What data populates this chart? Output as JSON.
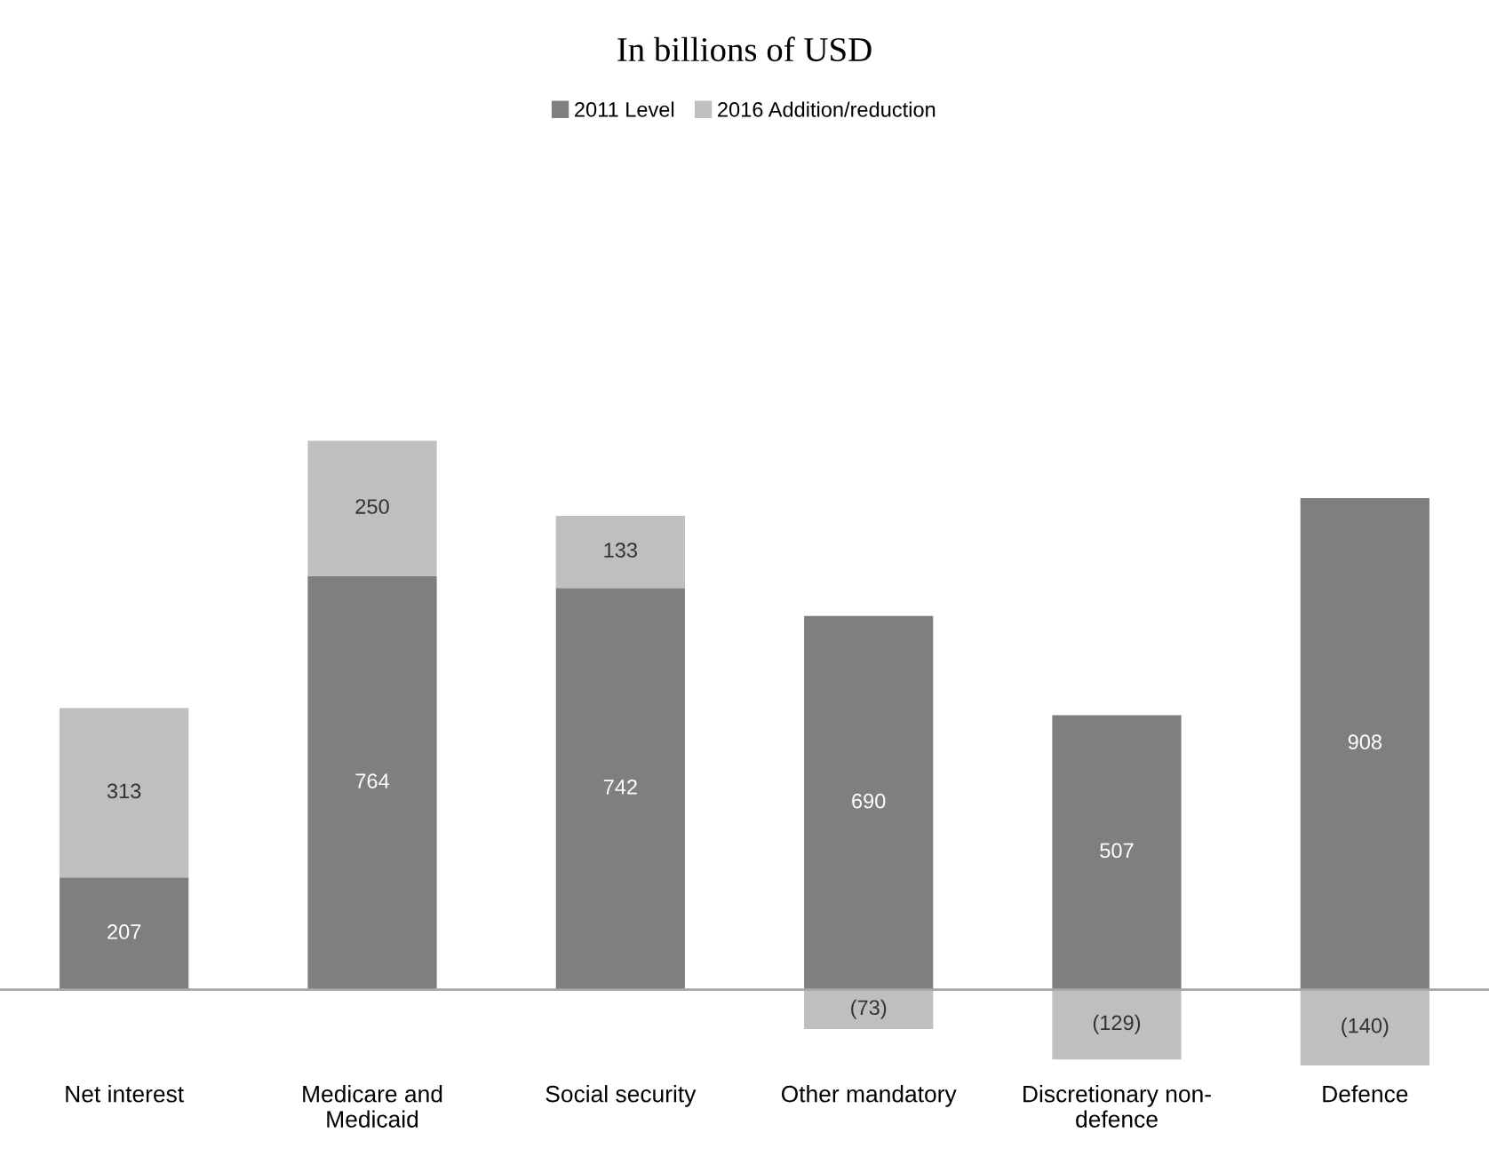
{
  "chart_data": {
    "type": "bar",
    "stacked": true,
    "title": "In billions of USD",
    "categories": [
      "Net interest",
      "Medicare and\nMedicaid",
      "Social security",
      "Other mandatory",
      "Discretionary non-\ndefence",
      "Defence"
    ],
    "series": [
      {
        "name": "2011 Level",
        "color": "#7f7f81",
        "values": [
          207,
          764,
          742,
          690,
          507,
          908
        ],
        "value_labels": [
          "207",
          "764",
          "742",
          "690",
          "507",
          "908"
        ]
      },
      {
        "name": "2016 Addition/reduction",
        "color": "#bfbfbf",
        "values": [
          313,
          250,
          133,
          -73,
          -129,
          -140
        ],
        "value_labels": [
          "313",
          "250",
          "133",
          "(73)",
          "(129)",
          "(140)"
        ]
      }
    ],
    "tick_labels": "x",
    "legend": "top",
    "grid": false
  }
}
